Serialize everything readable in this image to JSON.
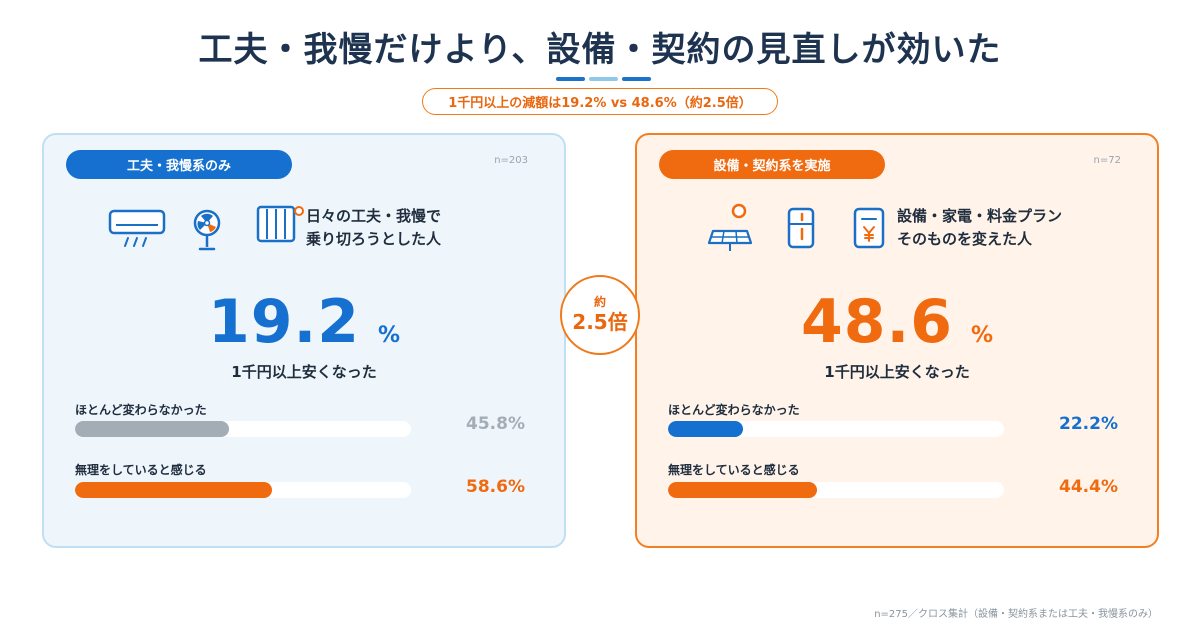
{
  "title": "工夫・我慢だけより、設備・契約の見直しが効いた",
  "subtitle": "1千円以上の減額は19.2% vs 48.6%（約2.5倍）",
  "colors": {
    "accent_bars": [
      "#1a73c9",
      "#8fc9ea",
      "#1a73c9"
    ],
    "blue": "#1570cf",
    "orange": "#f06a10",
    "gray": "#a3adb6"
  },
  "ratio_badge": {
    "prefix": "約",
    "value": "2.5倍"
  },
  "chart_data": {
    "type": "bar",
    "groups": [
      {
        "tag": "工夫・我慢系のみ",
        "n": "n=203",
        "description": [
          "日々の工夫・我慢で",
          "乗り切ろうとした人"
        ],
        "headline_value": "19.2",
        "headline_unit": "%",
        "headline_caption": "1千円以上安くなった",
        "icons": [
          "air-conditioner-icon",
          "fan-icon",
          "heater-icon"
        ],
        "bars": [
          {
            "label": "ほとんど変わらなかった",
            "value": 45.8,
            "display": "45.8%",
            "color": "#a3adb6",
            "value_color": "#a3adb6"
          },
          {
            "label": "無理をしていると感じる",
            "value": 58.6,
            "display": "58.6%",
            "color": "#f06a10",
            "value_color": "#f06a10"
          }
        ]
      },
      {
        "tag": "設備・契約系を実施",
        "n": "n=72",
        "description": [
          "設備・家電・料金プラン",
          "そのものを変えた人"
        ],
        "headline_value": "48.6",
        "headline_unit": "%",
        "headline_caption": "1千円以上安くなった",
        "icons": [
          "solar-panel-icon",
          "refrigerator-icon",
          "bill-icon"
        ],
        "bars": [
          {
            "label": "ほとんど変わらなかった",
            "value": 22.2,
            "display": "22.2%",
            "color": "#1570cf",
            "value_color": "#1570cf"
          },
          {
            "label": "無理をしていると感じる",
            "value": 44.4,
            "display": "44.4%",
            "color": "#f06a10",
            "value_color": "#f06a10"
          }
        ]
      }
    ]
  },
  "footnote": "n=275／クロス集計（設備・契約系または工夫・我慢系のみ）"
}
